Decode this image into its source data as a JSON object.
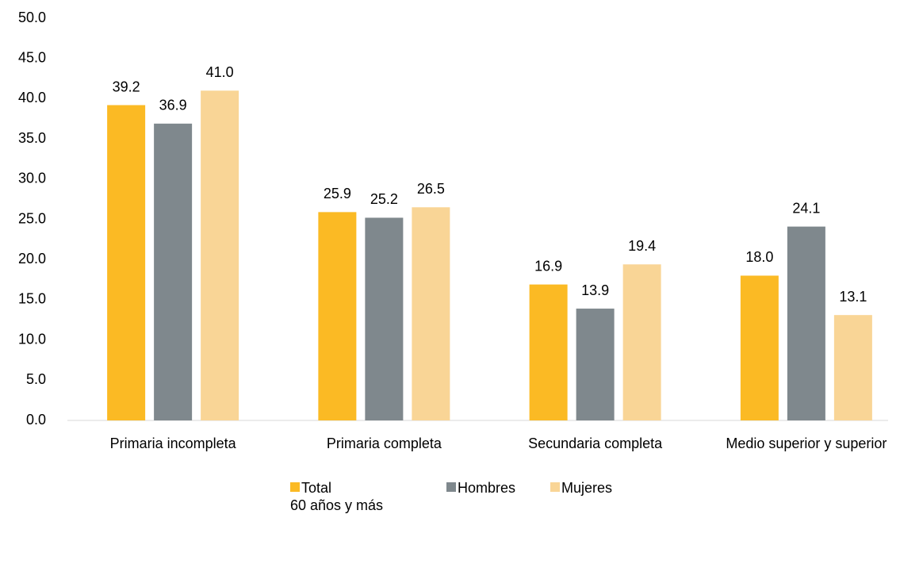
{
  "chart_data": {
    "type": "bar",
    "categories": [
      "Primaria incompleta",
      "Primaria completa",
      "Secundaria completa",
      "Medio superior y superior"
    ],
    "series": [
      {
        "name": "Total\n60 años y más",
        "color": "#FBBA24",
        "values": [
          39.2,
          25.9,
          16.9,
          18.0
        ],
        "value_labels": [
          "39.2",
          "25.9",
          "16.9",
          "18.0"
        ]
      },
      {
        "name": "Hombres",
        "color": "#7F888D",
        "values": [
          36.9,
          25.2,
          13.9,
          24.1
        ],
        "value_labels": [
          "36.9",
          "25.2",
          "13.9",
          "24.1"
        ]
      },
      {
        "name": "Mujeres",
        "color": "#F9D596",
        "values": [
          41.0,
          26.5,
          19.4,
          13.1
        ],
        "value_labels": [
          "41.0",
          "26.5",
          "19.4",
          "13.1"
        ]
      }
    ],
    "ylim": [
      0,
      50
    ],
    "yticks": [
      {
        "value": 0,
        "label": "0.0"
      },
      {
        "value": 5,
        "label": "5.0"
      },
      {
        "value": 10,
        "label": "10.0"
      },
      {
        "value": 15,
        "label": "15.0"
      },
      {
        "value": 20,
        "label": "20.0"
      },
      {
        "value": 25,
        "label": "25.0"
      },
      {
        "value": 30,
        "label": "30.0"
      },
      {
        "value": 35,
        "label": "35.0"
      },
      {
        "value": 40,
        "label": "40.0"
      },
      {
        "value": 45,
        "label": "45.0"
      },
      {
        "value": 50,
        "label": "50.0"
      }
    ],
    "grid": false,
    "legend": "bottom"
  }
}
